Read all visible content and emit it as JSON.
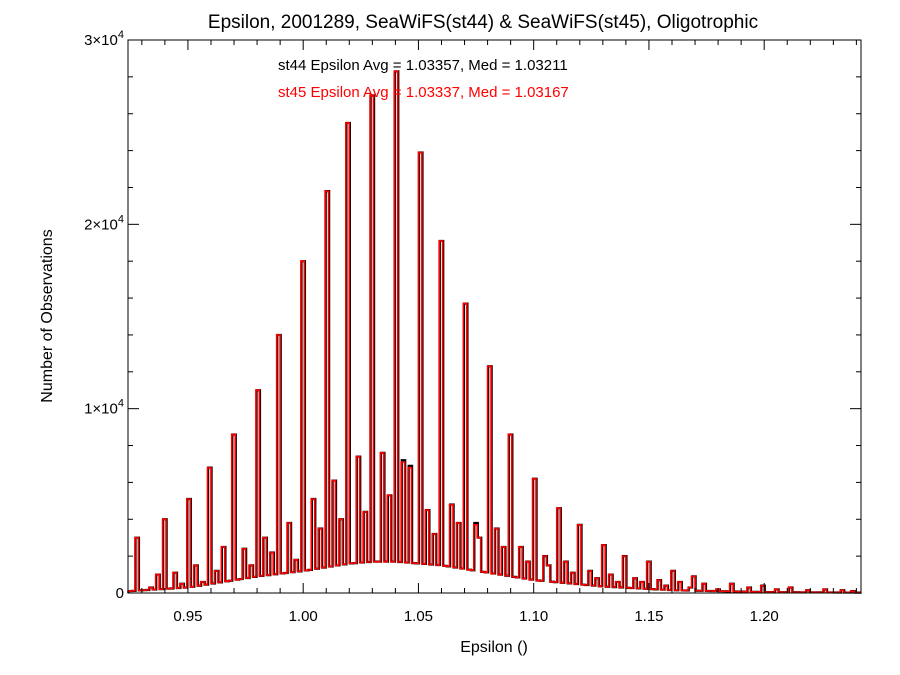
{
  "chart_data": {
    "type": "histogram",
    "title": "Epsilon, 2001289, SeaWiFS(st44) & SeaWiFS(st45), Oligotrophic",
    "xlabel": "Epsilon ()",
    "ylabel": "Number of Observations",
    "xlim": [
      0.924,
      1.242
    ],
    "ylim": [
      0,
      30000
    ],
    "grid": false,
    "x_ticks": [
      {
        "value": 0.95,
        "label": "0.95"
      },
      {
        "value": 1.0,
        "label": "1.00"
      },
      {
        "value": 1.05,
        "label": "1.05"
      },
      {
        "value": 1.1,
        "label": "1.10"
      },
      {
        "value": 1.15,
        "label": "1.15"
      },
      {
        "value": 1.2,
        "label": "1.20"
      }
    ],
    "y_ticks": [
      {
        "value": 0,
        "label": "0",
        "exp": ""
      },
      {
        "value": 10000,
        "label": "1×10",
        "exp": "4"
      },
      {
        "value": 20000,
        "label": "2×10",
        "exp": "4"
      },
      {
        "value": 30000,
        "label": "3×10",
        "exp": "4"
      }
    ],
    "annotations": [
      {
        "text": "st44 Epsilon Avg = 1.03357, Med = 1.03211",
        "color": "#000000"
      },
      {
        "text": "st45 Epsilon Avg = 1.03337, Med = 1.03167",
        "color": "#ff0000"
      }
    ],
    "bin_width": 0.0015,
    "series": [
      {
        "name": "st44",
        "color": "#000000",
        "spikes": [
          [
            0.928,
            3000
          ],
          [
            0.94,
            4000
          ],
          [
            0.95,
            5100
          ],
          [
            0.96,
            6800
          ],
          [
            0.97,
            8600
          ],
          [
            0.98,
            11000
          ],
          [
            0.99,
            14000
          ],
          [
            1.0,
            18000
          ],
          [
            1.01,
            21800
          ],
          [
            1.02,
            25500
          ],
          [
            1.03,
            27000
          ],
          [
            1.04,
            28300
          ],
          [
            1.05,
            23900
          ],
          [
            1.06,
            19100
          ],
          [
            1.07,
            15700
          ],
          [
            1.08,
            12300
          ],
          [
            1.09,
            8600
          ],
          [
            1.1,
            6200
          ],
          [
            1.11,
            4600
          ],
          [
            1.12,
            3700
          ],
          [
            1.13,
            2600
          ],
          [
            1.14,
            2000
          ],
          [
            1.15,
            1700
          ],
          [
            1.16,
            1200
          ],
          [
            1.17,
            900
          ]
        ],
        "minor_spikes": [
          [
            0.933,
            300
          ],
          [
            0.936,
            1000
          ],
          [
            0.944,
            1100
          ],
          [
            0.947,
            500
          ],
          [
            0.954,
            1500
          ],
          [
            0.957,
            600
          ],
          [
            0.963,
            1200
          ],
          [
            0.966,
            2500
          ],
          [
            0.974,
            2400
          ],
          [
            0.977,
            1500
          ],
          [
            0.984,
            3000
          ],
          [
            0.987,
            2200
          ],
          [
            0.994,
            3800
          ],
          [
            0.997,
            1800
          ],
          [
            1.004,
            5100
          ],
          [
            1.007,
            3500
          ],
          [
            1.014,
            6100
          ],
          [
            1.017,
            4000
          ],
          [
            1.024,
            7400
          ],
          [
            1.027,
            4400
          ],
          [
            1.034,
            7600
          ],
          [
            1.037,
            5300
          ],
          [
            1.043,
            7200
          ],
          [
            1.046,
            6900
          ],
          [
            1.054,
            4500
          ],
          [
            1.057,
            3200
          ],
          [
            1.064,
            4800
          ],
          [
            1.067,
            3800
          ],
          [
            1.074,
            3800
          ],
          [
            1.077,
            3000
          ],
          [
            1.084,
            3500
          ],
          [
            1.087,
            2500
          ],
          [
            1.094,
            2500
          ],
          [
            1.097,
            1700
          ],
          [
            1.104,
            2000
          ],
          [
            1.107,
            1500
          ],
          [
            1.114,
            1700
          ],
          [
            1.117,
            1100
          ],
          [
            1.124,
            1200
          ],
          [
            1.127,
            800
          ],
          [
            1.134,
            1000
          ],
          [
            1.137,
            600
          ],
          [
            1.144,
            800
          ],
          [
            1.147,
            600
          ],
          [
            1.154,
            700
          ],
          [
            1.157,
            400
          ],
          [
            1.164,
            600
          ],
          [
            1.167,
            300
          ],
          [
            1.174,
            500
          ],
          [
            1.18,
            200
          ],
          [
            1.186,
            500
          ],
          [
            1.193,
            300
          ],
          [
            1.199,
            400
          ],
          [
            1.206,
            200
          ],
          [
            1.212,
            300
          ],
          [
            1.219,
            150
          ],
          [
            1.226,
            200
          ],
          [
            1.233,
            150
          ],
          [
            1.238,
            100
          ]
        ],
        "baseline": [
          [
            0.924,
            100
          ],
          [
            0.95,
            300
          ],
          [
            0.98,
            900
          ],
          [
            1.0,
            1200
          ],
          [
            1.02,
            1600
          ],
          [
            1.03,
            1700
          ],
          [
            1.04,
            1700
          ],
          [
            1.06,
            1500
          ],
          [
            1.08,
            1100
          ],
          [
            1.1,
            700
          ],
          [
            1.13,
            350
          ],
          [
            1.16,
            150
          ],
          [
            1.2,
            50
          ],
          [
            1.242,
            20
          ]
        ]
      },
      {
        "name": "st45",
        "color": "#ff0000",
        "spikes": [
          [
            0.928,
            3000
          ],
          [
            0.94,
            4000
          ],
          [
            0.95,
            5100
          ],
          [
            0.96,
            6800
          ],
          [
            0.97,
            8600
          ],
          [
            0.98,
            11000
          ],
          [
            0.99,
            14000
          ],
          [
            1.0,
            18000
          ],
          [
            1.01,
            21800
          ],
          [
            1.02,
            25500
          ],
          [
            1.03,
            27000
          ],
          [
            1.04,
            28300
          ],
          [
            1.05,
            23900
          ],
          [
            1.06,
            19100
          ],
          [
            1.07,
            15700
          ],
          [
            1.08,
            12300
          ],
          [
            1.09,
            8600
          ],
          [
            1.1,
            6200
          ],
          [
            1.11,
            4600
          ],
          [
            1.12,
            3700
          ],
          [
            1.13,
            2600
          ],
          [
            1.14,
            2000
          ],
          [
            1.15,
            1700
          ],
          [
            1.16,
            1200
          ],
          [
            1.17,
            900
          ]
        ],
        "minor_spikes": [
          [
            0.933,
            300
          ],
          [
            0.936,
            1000
          ],
          [
            0.944,
            1100
          ],
          [
            0.947,
            500
          ],
          [
            0.954,
            1500
          ],
          [
            0.957,
            600
          ],
          [
            0.963,
            1200
          ],
          [
            0.966,
            2500
          ],
          [
            0.974,
            2400
          ],
          [
            0.977,
            1500
          ],
          [
            0.984,
            3000
          ],
          [
            0.987,
            2200
          ],
          [
            0.994,
            3800
          ],
          [
            0.997,
            1800
          ],
          [
            1.004,
            5100
          ],
          [
            1.007,
            3500
          ],
          [
            1.014,
            6100
          ],
          [
            1.017,
            4000
          ],
          [
            1.024,
            7400
          ],
          [
            1.027,
            4400
          ],
          [
            1.034,
            7600
          ],
          [
            1.037,
            5300
          ],
          [
            1.043,
            7100
          ],
          [
            1.046,
            6800
          ],
          [
            1.054,
            4500
          ],
          [
            1.057,
            3200
          ],
          [
            1.064,
            4800
          ],
          [
            1.067,
            3800
          ],
          [
            1.074,
            3700
          ],
          [
            1.077,
            3000
          ],
          [
            1.084,
            3500
          ],
          [
            1.087,
            2500
          ],
          [
            1.094,
            2500
          ],
          [
            1.097,
            1700
          ],
          [
            1.104,
            2000
          ],
          [
            1.107,
            1500
          ],
          [
            1.114,
            1700
          ],
          [
            1.117,
            1100
          ],
          [
            1.124,
            1200
          ],
          [
            1.127,
            800
          ],
          [
            1.134,
            1000
          ],
          [
            1.137,
            600
          ],
          [
            1.144,
            800
          ],
          [
            1.147,
            600
          ],
          [
            1.154,
            700
          ],
          [
            1.157,
            400
          ],
          [
            1.164,
            600
          ],
          [
            1.167,
            300
          ],
          [
            1.174,
            500
          ],
          [
            1.18,
            200
          ],
          [
            1.186,
            500
          ],
          [
            1.193,
            300
          ],
          [
            1.199,
            400
          ],
          [
            1.206,
            200
          ],
          [
            1.212,
            300
          ],
          [
            1.219,
            150
          ],
          [
            1.226,
            200
          ],
          [
            1.233,
            150
          ],
          [
            1.238,
            100
          ]
        ],
        "baseline": [
          [
            0.924,
            100
          ],
          [
            0.95,
            300
          ],
          [
            0.98,
            900
          ],
          [
            1.0,
            1200
          ],
          [
            1.02,
            1600
          ],
          [
            1.03,
            1700
          ],
          [
            1.04,
            1700
          ],
          [
            1.06,
            1500
          ],
          [
            1.08,
            1100
          ],
          [
            1.1,
            700
          ],
          [
            1.13,
            350
          ],
          [
            1.16,
            150
          ],
          [
            1.2,
            50
          ],
          [
            1.242,
            20
          ]
        ]
      }
    ]
  }
}
